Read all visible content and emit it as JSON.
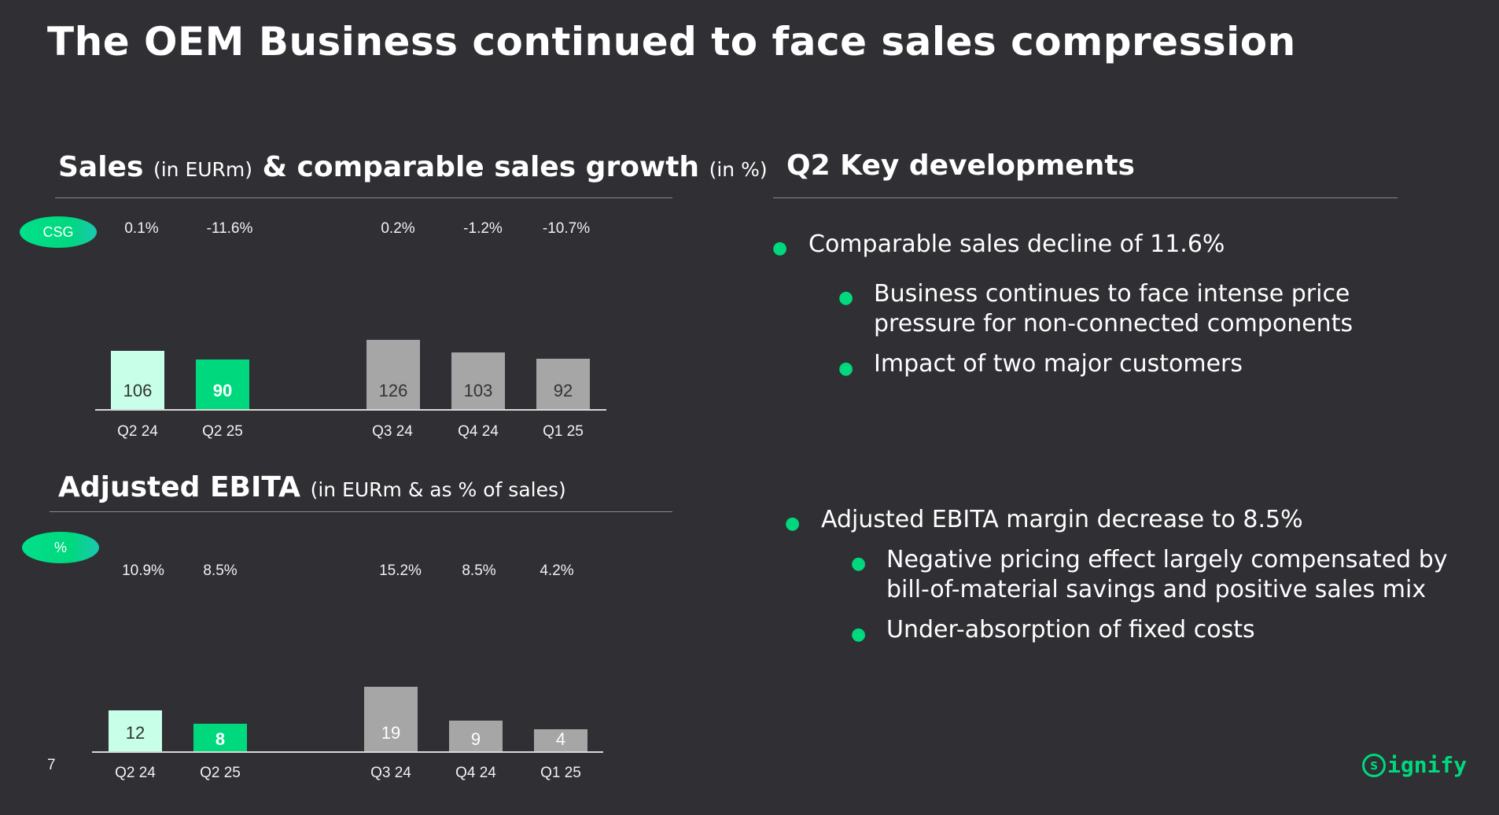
{
  "title": "The OEM Business continued to face sales compression",
  "sales": {
    "title": "Sales",
    "title_unit": "(in EURm)",
    "title2": "& comparable sales growth",
    "title2_unit": "(in %)",
    "pill": "CSG",
    "growth": [
      "0.1%",
      "-11.6%",
      "0.2%",
      "-1.2%",
      "-10.7%"
    ]
  },
  "ebita": {
    "title": "Adjusted EBITA",
    "title_unit": "(in EURm & as % of sales)",
    "pill": "%",
    "margin": [
      "10.9%",
      "8.5%",
      "15.2%",
      "8.5%",
      "4.2%"
    ]
  },
  "chart_data": [
    {
      "type": "bar",
      "title": "Sales (in EURm) & comparable sales growth (in %)",
      "categories": [
        "Q2 24",
        "Q2 25",
        "Q3 24",
        "Q4 24",
        "Q1 25"
      ],
      "values": [
        106,
        90,
        126,
        103,
        92
      ],
      "value_labels": [
        "106",
        "90",
        "126",
        "103",
        "92"
      ],
      "colors": [
        "#c8ffe8",
        "#00d87e",
        "#a6a6a6",
        "#a6a6a6",
        "#a6a6a6"
      ],
      "label_colors": [
        "#333333",
        "#ffffff",
        "#333333",
        "#333333",
        "#333333"
      ],
      "ylim": [
        0,
        126
      ]
    },
    {
      "type": "bar",
      "title": "Adjusted EBITA (in EURm & as % of sales)",
      "categories": [
        "Q2 24",
        "Q2 25",
        "Q3 24",
        "Q4 24",
        "Q1 25"
      ],
      "values": [
        12,
        8,
        19,
        9,
        4
      ],
      "value_labels": [
        "12",
        "8",
        "19",
        "9",
        "4"
      ],
      "colors": [
        "#c8ffe8",
        "#00d87e",
        "#a6a6a6",
        "#a6a6a6",
        "#a6a6a6"
      ],
      "label_colors": [
        "#333333",
        "#ffffff",
        "#ffffff",
        "#ffffff",
        "#ffffff"
      ],
      "ylim": [
        0,
        19
      ]
    }
  ],
  "key": {
    "title": "Q2 Key developments",
    "b1": "Comparable sales decline of 11.6%",
    "b1a": "Business continues to face intense price",
    "b1a2": "pressure for non-connected components",
    "b1b": "Impact of two major customers",
    "b2": "Adjusted EBITA margin decrease to 8.5%",
    "b2a": "Negative pricing effect largely compensated by",
    "b2a2": "bill-of-material savings and positive sales mix",
    "b2b": "Under-absorption of fixed costs"
  },
  "footer": {
    "page": "7",
    "logo": "ignify",
    "logo_s": "s"
  },
  "accent_color": "#00d87e"
}
